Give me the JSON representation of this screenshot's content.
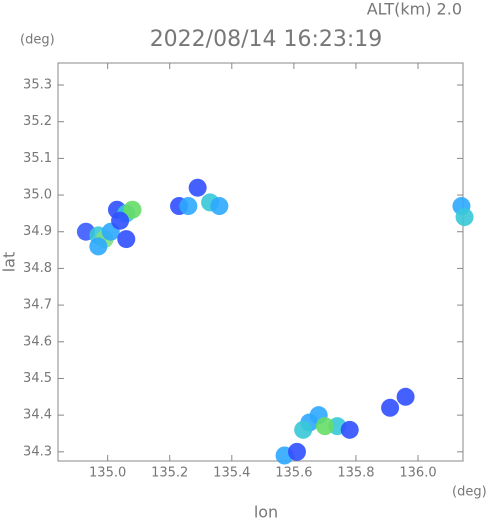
{
  "chart_data": {
    "type": "scatter",
    "title": "2022/08/14 16:23:19",
    "subtitle": "ALT(km) 2.0",
    "y_label": "lat",
    "y_unit": "(deg)",
    "x_label": "lon",
    "x_unit": "(deg)",
    "xlim": [
      134.84,
      136.145
    ],
    "ylim": [
      34.275,
      35.36
    ],
    "xticks": [
      {
        "value": 135,
        "label": "135.0"
      },
      135.2,
      135.4,
      135.6,
      135.8,
      {
        "value": 136,
        "label": "136.0"
      }
    ],
    "yticks": [
      34.3,
      34.4,
      34.5,
      34.6,
      34.7,
      34.8,
      34.9,
      {
        "value": 35,
        "label": "35.0"
      },
      35.1,
      35.2,
      35.3
    ],
    "x": [
      134.93,
      134.97,
      134.99,
      135.01,
      134.97,
      135.06,
      135.03,
      135.06,
      135.08,
      135.04,
      135.23,
      135.26,
      135.29,
      135.33,
      135.36,
      136.14,
      136.15,
      135.65,
      135.68,
      135.74,
      135.78,
      135.63,
      135.7,
      135.57,
      135.61,
      135.91,
      135.96
    ],
    "values": [
      34.9,
      34.89,
      34.88,
      34.9,
      34.86,
      34.88,
      34.96,
      34.95,
      34.96,
      34.93,
      34.97,
      34.97,
      35.02,
      34.98,
      34.97,
      34.97,
      34.94,
      34.38,
      34.4,
      34.37,
      34.36,
      34.36,
      34.37,
      34.29,
      34.3,
      34.42,
      34.45
    ],
    "point_colors": [
      "#3a5cff",
      "#38c8d8",
      "#7fe07f",
      "#2ea8ff",
      "#2ea8ff",
      "#3050ff",
      "#3050ff",
      "#38c8d8",
      "#66dd66",
      "#3050ff",
      "#3050ff",
      "#2ea8ff",
      "#3050ff",
      "#38c8d8",
      "#2ea8ff",
      "#2ea8ff",
      "#38c8d8",
      "#2ea8ff",
      "#2ea8ff",
      "#38c8d8",
      "#3050ff",
      "#38c8d8",
      "#66dd66",
      "#2ea8ff",
      "#3050ff",
      "#3050ff",
      "#3050ff"
    ]
  }
}
